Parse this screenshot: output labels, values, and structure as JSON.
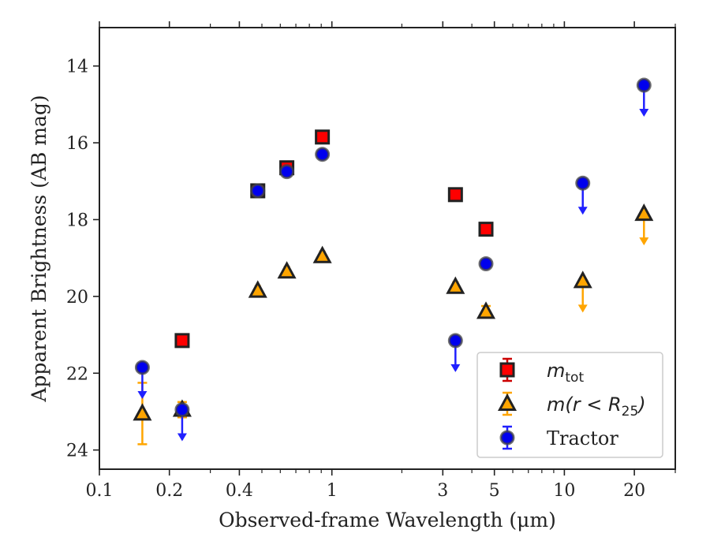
{
  "chart_data": {
    "type": "scatter",
    "xscale": "log",
    "yinverted": true,
    "xlim": [
      0.1,
      30
    ],
    "ylim": [
      24.5,
      13
    ],
    "xlabel": "Observed-frame Wavelength (μm)",
    "ylabel": "Apparent Brightness (AB mag)",
    "xticks": [
      0.1,
      0.2,
      0.4,
      1,
      3,
      5,
      10,
      20
    ],
    "xtick_labels": [
      "0.1",
      "0.2",
      "0.4",
      "1",
      "3",
      "5",
      "10",
      "20"
    ],
    "yticks": [
      14,
      16,
      18,
      20,
      22,
      24
    ],
    "ytick_labels": [
      "14",
      "16",
      "18",
      "20",
      "22",
      "24"
    ],
    "legend_position": "lower-right",
    "legend": [
      {
        "base": "m",
        "sub": "tot",
        "rest": "",
        "style": "math"
      },
      {
        "base": "m(r < R",
        "sub": "25",
        "rest": ")",
        "style": "math"
      },
      {
        "base": "Tractor",
        "sub": "",
        "rest": "",
        "style": "text"
      }
    ],
    "series": [
      {
        "key": "mtot",
        "marker": "square",
        "face": "#ff0000",
        "err": "#cc0000",
        "points": [
          {
            "x": 0.227,
            "y": 21.15,
            "upper": false
          },
          {
            "x": 0.48,
            "y": 17.25,
            "upper": false
          },
          {
            "x": 0.64,
            "y": 16.65,
            "upper": false
          },
          {
            "x": 0.91,
            "y": 15.85,
            "upper": false
          },
          {
            "x": 3.4,
            "y": 17.35,
            "upper": false
          },
          {
            "x": 4.6,
            "y": 18.25,
            "upper": false
          }
        ]
      },
      {
        "key": "mr25",
        "marker": "triangle",
        "face": "#ffa500",
        "err": "#ffa500",
        "points": [
          {
            "x": 0.153,
            "y": 23.05,
            "upper": false,
            "yerr": 0.8
          },
          {
            "x": 0.227,
            "y": 22.95,
            "upper": false,
            "yerr": 0.2
          },
          {
            "x": 0.48,
            "y": 19.85,
            "upper": false
          },
          {
            "x": 0.64,
            "y": 19.35,
            "upper": false
          },
          {
            "x": 0.91,
            "y": 18.95,
            "upper": false
          },
          {
            "x": 3.4,
            "y": 19.75,
            "upper": false
          },
          {
            "x": 4.6,
            "y": 20.4,
            "upper": false,
            "yerr": 0.15
          },
          {
            "x": 12.0,
            "y": 19.6,
            "upper": true
          },
          {
            "x": 22.0,
            "y": 17.85,
            "upper": true
          }
        ]
      },
      {
        "key": "tractor",
        "marker": "circle",
        "face": "#0000ee",
        "err": "#2020ff",
        "points": [
          {
            "x": 0.153,
            "y": 21.85,
            "upper": true
          },
          {
            "x": 0.227,
            "y": 22.95,
            "upper": true
          },
          {
            "x": 0.48,
            "y": 17.25,
            "upper": false
          },
          {
            "x": 0.64,
            "y": 16.75,
            "upper": false
          },
          {
            "x": 0.91,
            "y": 16.3,
            "upper": false
          },
          {
            "x": 3.4,
            "y": 21.15,
            "upper": true
          },
          {
            "x": 4.6,
            "y": 19.15,
            "upper": false
          },
          {
            "x": 12.0,
            "y": 17.05,
            "upper": true
          },
          {
            "x": 22.0,
            "y": 14.5,
            "upper": true
          }
        ]
      }
    ]
  }
}
